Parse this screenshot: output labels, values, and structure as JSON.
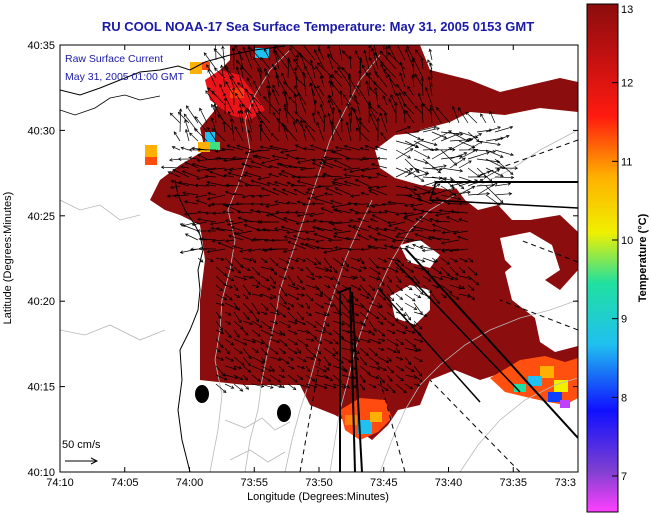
{
  "header": {
    "title": "RU COOL  NOAA-17  Sea Surface Temperature:  May 31, 2005 0153 GMT"
  },
  "overlay": {
    "line1": "Raw Surface Current",
    "line2": "May 31, 2005 01:00 GMT"
  },
  "scale_bar": {
    "label": "50 cm/s"
  },
  "axes": {
    "xlabel": "Longitude (Degrees:Minutes)",
    "ylabel": "Latitude (Degrees:Minutes)",
    "x_ticks": [
      "74:10",
      "74:05",
      "74:00",
      "73:55",
      "73:50",
      "73:45",
      "73:40",
      "73:35",
      "73:3"
    ],
    "y_ticks": [
      "40:35",
      "40:30",
      "40:25",
      "40:20",
      "40:15",
      "40:10"
    ]
  },
  "colorbar": {
    "label": "Temperature (°C)",
    "ticks": [
      "13",
      "12",
      "11",
      "10",
      "9",
      "8",
      "7"
    ],
    "colors": {
      "c13": "#8b0d0d",
      "c12": "#ff1a10",
      "c11": "#ffb000",
      "c10": "#f0f000",
      "c9": "#20c0f0",
      "c8": "#1010ff",
      "c7": "#8040d0",
      "low": "#ff40ff"
    }
  },
  "map": {
    "sst_main_color": "#8b0d0d",
    "land_color": "#ffffff",
    "current_color": "#000000",
    "bathymetry_color": "#b8b8b8"
  }
}
